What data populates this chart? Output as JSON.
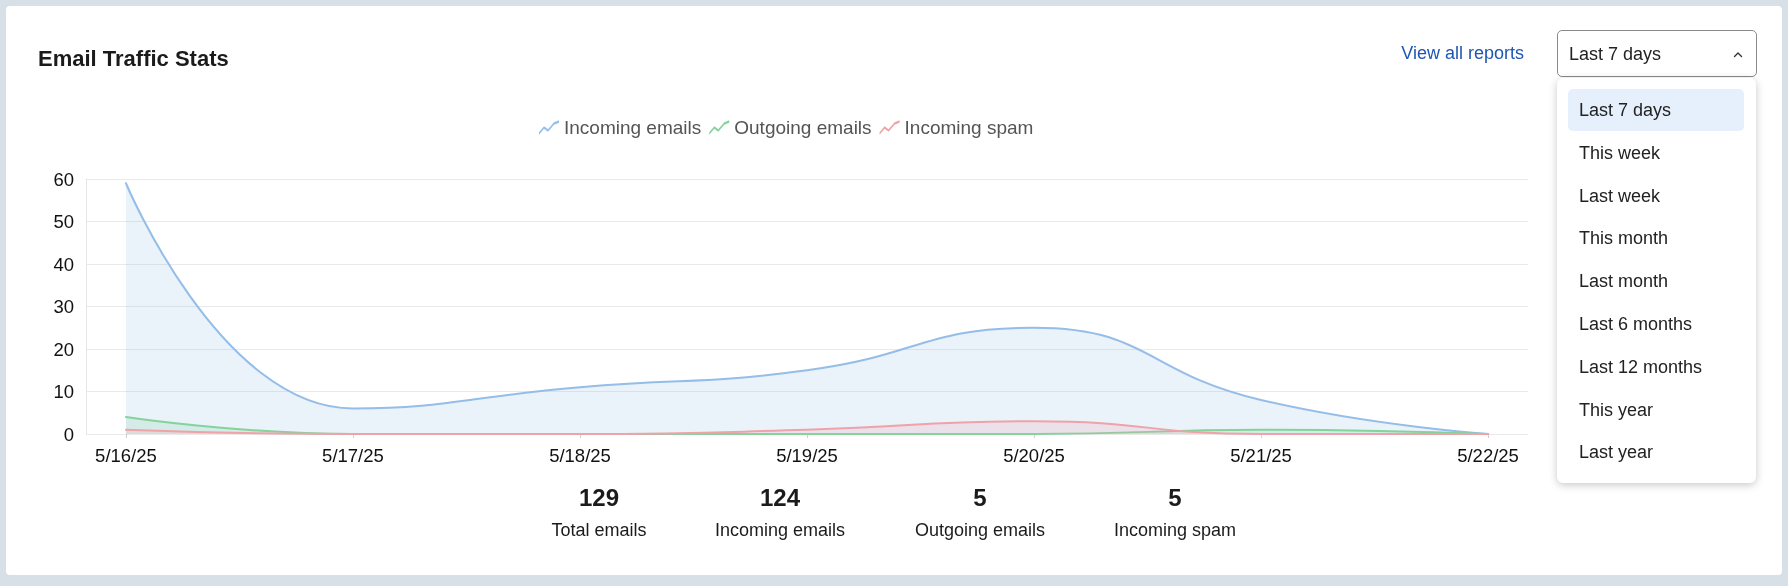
{
  "chart_data": {
    "type": "area",
    "title": "Email Traffic Stats",
    "categories": [
      "5/16/25",
      "5/17/25",
      "5/18/25",
      "5/19/25",
      "5/20/25",
      "5/21/25",
      "5/22/25"
    ],
    "series": [
      {
        "name": "Incoming emails",
        "color": "#94bde8",
        "values": [
          59,
          6,
          11,
          15,
          25,
          8,
          0
        ]
      },
      {
        "name": "Outgoing emails",
        "color": "#84d39a",
        "values": [
          4,
          0,
          0,
          0,
          0,
          1,
          0
        ]
      },
      {
        "name": "Incoming spam",
        "color": "#f0a2a8",
        "values": [
          1,
          0,
          0,
          1,
          3,
          0,
          0
        ]
      }
    ],
    "ylim": [
      0,
      60
    ],
    "yticks": [
      0,
      10,
      20,
      30,
      40,
      50,
      60
    ],
    "grid": "y",
    "legend": "top",
    "marker": "none",
    "annotations": [
      "View all reports",
      "Last 7 days",
      "Last 7 days",
      "This week",
      "Last week",
      "This month",
      "Last month",
      "Last 6 months",
      "Last 12 months",
      "This year",
      "Last year",
      "129",
      "Total emails",
      "124",
      "Incoming emails",
      "5",
      "Outgoing emails",
      "5",
      "Incoming spam"
    ]
  }
}
